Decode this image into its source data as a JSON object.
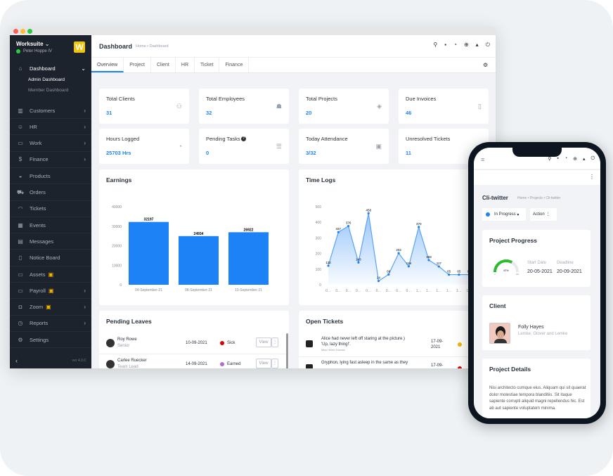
{
  "window": {
    "brand": "Worksuite",
    "brand_logo": "W",
    "user": "Peter Hoppe IV",
    "version": "ver 4.0.0"
  },
  "sidebar": {
    "items": [
      {
        "label": "Dashboard",
        "icon": "home-icon",
        "chevron": "down"
      },
      {
        "label": "Customers",
        "icon": "building-icon",
        "chevron": "right"
      },
      {
        "label": "HR",
        "icon": "user-icon",
        "chevron": "right"
      },
      {
        "label": "Work",
        "icon": "briefcase-icon",
        "chevron": "right"
      },
      {
        "label": "Finance",
        "icon": "dollar-icon",
        "chevron": "right"
      },
      {
        "label": "Products",
        "icon": "basket-icon"
      },
      {
        "label": "Orders",
        "icon": "cart-icon"
      },
      {
        "label": "Tickets",
        "icon": "headset-icon"
      },
      {
        "label": "Events",
        "icon": "calendar-icon"
      },
      {
        "label": "Messages",
        "icon": "message-icon"
      },
      {
        "label": "Notice Board",
        "icon": "clipboard-icon"
      },
      {
        "label": "Assets",
        "icon": "monitor-icon",
        "locked": true
      },
      {
        "label": "Payroll",
        "icon": "wallet-icon",
        "locked": true,
        "chevron": "right"
      },
      {
        "label": "Zoom",
        "icon": "video-icon",
        "locked": true,
        "chevron": "right"
      },
      {
        "label": "Reports",
        "icon": "chart-pie-icon",
        "chevron": "right"
      },
      {
        "label": "Settings",
        "icon": "gear-icon"
      }
    ],
    "sub_items": [
      "Admin Dashboard",
      "Member Dashboard"
    ]
  },
  "header": {
    "title": "Dashboard",
    "breadcrumb": "Home • Dashboard",
    "icons": [
      "search-icon",
      "sticky-note-icon",
      "clock-icon",
      "plus-circle-icon",
      "bell-icon",
      "power-icon"
    ]
  },
  "tabs": [
    "Overview",
    "Project",
    "Client",
    "HR",
    "Ticket",
    "Finance"
  ],
  "stats": [
    {
      "label": "Total Clients",
      "value": "31",
      "icon": "users-icon"
    },
    {
      "label": "Total Employees",
      "value": "32",
      "icon": "user-icon"
    },
    {
      "label": "Total Projects",
      "value": "20",
      "icon": "layers-icon"
    },
    {
      "label": "Due Invoices",
      "value": "46",
      "icon": "invoice-icon"
    },
    {
      "label": "Hours Logged",
      "value": "25703 Hrs",
      "icon": "clock-icon"
    },
    {
      "label": "Pending Tasks",
      "value": "0",
      "icon": "tasks-icon",
      "help": true
    },
    {
      "label": "Today Attendance",
      "value": "3/32",
      "icon": "calendar-check-icon"
    },
    {
      "label": "Unresolved Tickets",
      "value": "11",
      "icon": "ticket-icon"
    }
  ],
  "chart_data": [
    {
      "type": "bar",
      "title": "Earnings",
      "categories": [
        "04-September-21",
        "08-September-21",
        "13-September-21"
      ],
      "values": [
        32197,
        24934,
        26922
      ],
      "ylim": [
        0,
        40000
      ],
      "yticks": [
        0,
        10000,
        20000,
        30000,
        40000
      ],
      "color": "#1d82f5"
    },
    {
      "type": "area",
      "title": "Time Logs",
      "x": [
        "0…",
        "0…",
        "0…",
        "0…",
        "0…",
        "0…",
        "0…",
        "0…",
        "0…",
        "1…",
        "1…",
        "1…",
        "1…",
        "1…",
        "1…"
      ],
      "values": [
        122,
        337,
        376,
        143,
        458,
        24,
        66,
        202,
        118,
        370,
        158,
        117,
        65,
        65,
        65
      ],
      "ylim": [
        0,
        500
      ],
      "yticks": [
        0,
        100,
        200,
        300,
        400,
        500
      ],
      "color": "#1d82f5"
    }
  ],
  "pending_leaves": {
    "title": "Pending Leaves",
    "rows": [
      {
        "name": "Roy Rowe",
        "role": "Senior",
        "date": "10-09-2021",
        "type": "Sick",
        "color": "#e00000",
        "action": "View"
      },
      {
        "name": "Carlee Ruecker",
        "role": "Team Lead",
        "date": "14-09-2021",
        "type": "Earned",
        "color": "#b36bd4",
        "action": "View"
      }
    ]
  },
  "open_tickets": {
    "title": "Open Tickets",
    "rows": [
      {
        "subject": "Alice had never left off staring at the picture.) 'Up, lazy thing!'.",
        "by": "Miss Helen Donato",
        "date": "17-09-2021",
        "color": "#f5b400"
      },
      {
        "subject": "Gryphon, lying fast asleep in the same as they",
        "by": "",
        "date": "17-09-",
        "color": "#e00000"
      }
    ]
  },
  "phone": {
    "project": "Cli-twitter",
    "breadcrumb": "Home • Projects • Cli-twitter",
    "status": "In Progress",
    "status_color": "#1d82f5",
    "action": "Action",
    "progress": {
      "title": "Project Progress",
      "percent": 67,
      "start_label": "Start Date",
      "start": "20-05-2021",
      "deadline_label": "Deadline",
      "deadline": "20-09-2021",
      "min": "0",
      "max": "100",
      "pct_label": "67%"
    },
    "client": {
      "title": "Client",
      "name": "Folly Hayes",
      "company": "Lemke, Glover and Lemke"
    },
    "details": {
      "title": "Project Details",
      "text": "Nisi architecto cumque eius. Aliquam qui sit quaerat dolor molestiae tempora blanditiis. Sit itaque sapiente corrupti aliquid magni repellendus hic. Est ab aut sapiente voluptatem minima."
    }
  }
}
